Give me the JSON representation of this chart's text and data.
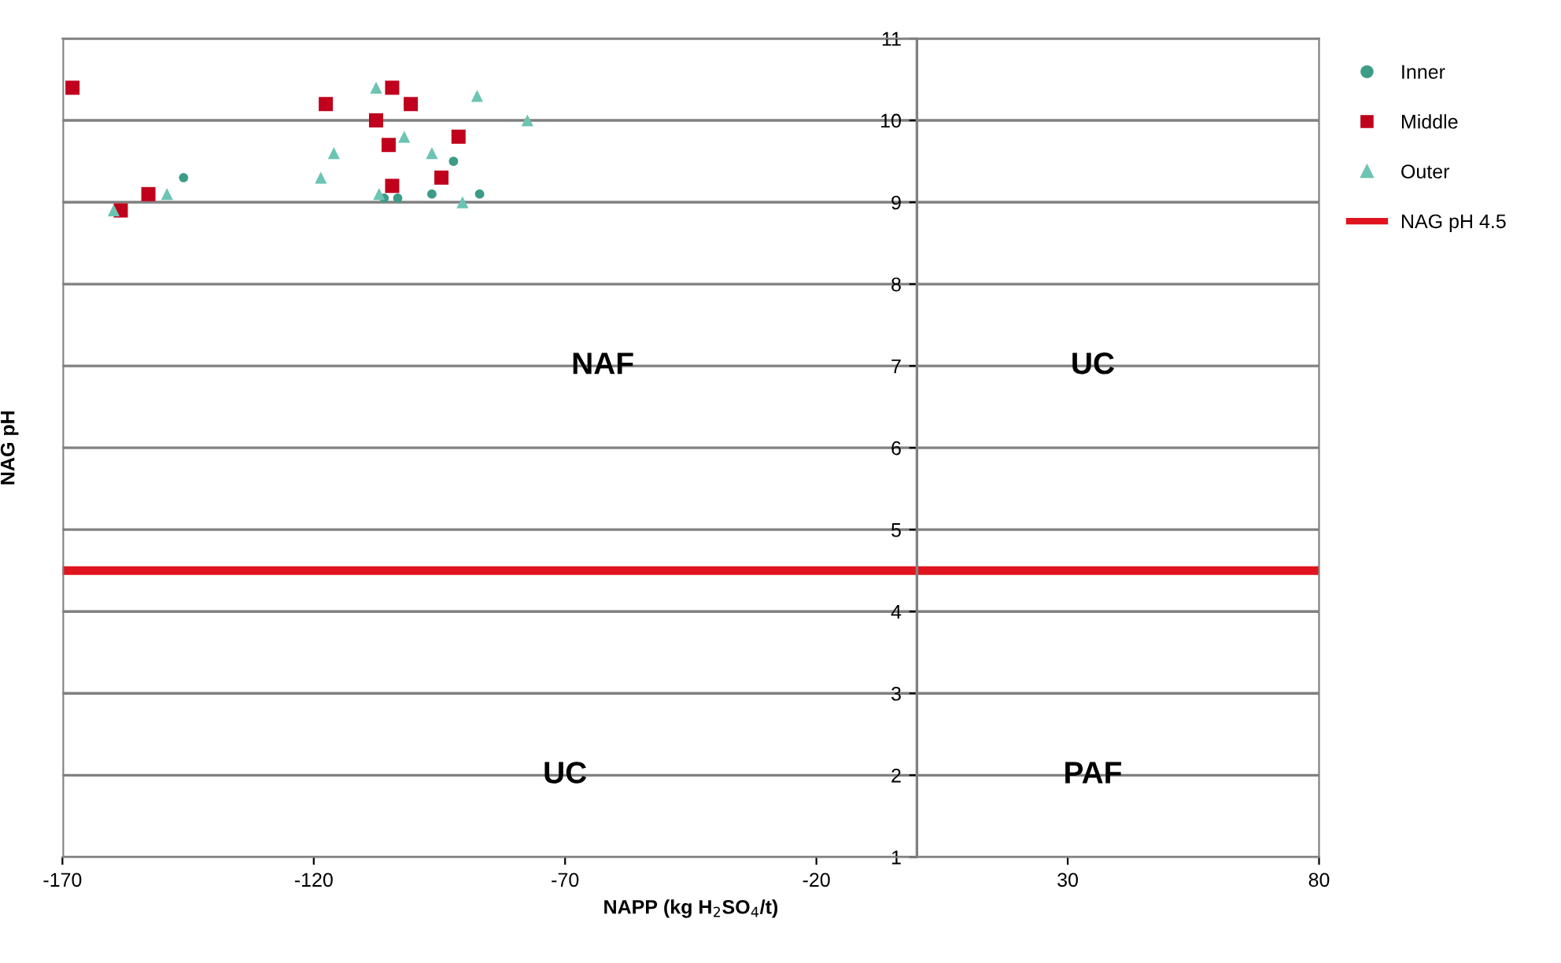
{
  "chart_data": {
    "type": "scatter",
    "xlabel": "NAPP (kg H$_{2}$SO$_{4}$/t)",
    "ylabel": "NAG pH",
    "xlim": [
      -170,
      80
    ],
    "xticks": [
      -170,
      -120,
      -70,
      -20,
      30,
      80
    ],
    "ylim": [
      1,
      11
    ],
    "yticks": [
      1,
      2,
      3,
      4,
      5,
      6,
      7,
      8,
      9,
      10,
      11
    ],
    "grid": "y",
    "legend": "right",
    "series": [
      {
        "name": "Inner",
        "color": "#3c9c88",
        "marker": "circle",
        "x": [
          -145.9,
          -92.2,
          -87,
          -96.5,
          -106,
          -103.3
        ],
        "values": [
          9.3,
          9.5,
          9.1,
          9.1,
          9.05,
          9.05
        ]
      },
      {
        "name": "Middle",
        "color": "#c0001c",
        "marker": "square",
        "x": [
          -168,
          -152.9,
          -158.4,
          -117.6,
          -104.4,
          -100.7,
          -107.6,
          -105.1,
          -91.2,
          -94.6,
          -104.4
        ],
        "values": [
          10.4,
          9.1,
          8.9,
          10.2,
          10.4,
          10.2,
          10.0,
          9.7,
          9.8,
          9.3,
          9.2
        ]
      },
      {
        "name": "Outer",
        "color": "#6cc4b2",
        "marker": "triangle",
        "x": [
          -159.8,
          -149.2,
          -118.6,
          -116,
          -107.6,
          -102,
          -96.5,
          -87.5,
          -77.5,
          -90.4,
          -107
        ],
        "values": [
          8.9,
          9.1,
          9.3,
          9.6,
          10.4,
          9.8,
          9.6,
          10.3,
          10.0,
          9.0,
          9.1
        ]
      }
    ],
    "ref_lines": [
      {
        "axis": "y",
        "value": 4.5,
        "label": "NAG pH 4.5",
        "color": "#e0141e"
      },
      {
        "axis": "x",
        "value": 0,
        "color": "#808080"
      }
    ],
    "annotations": [
      "NAF",
      "UC",
      "UC",
      "PAF"
    ]
  }
}
